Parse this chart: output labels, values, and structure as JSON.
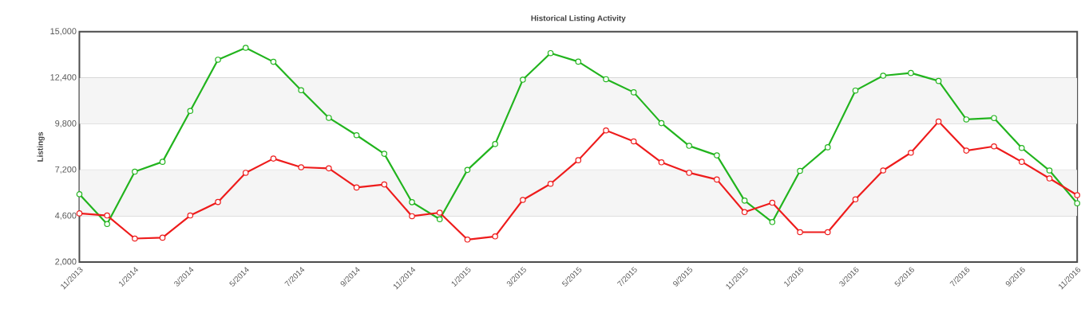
{
  "chart_data": {
    "type": "line",
    "title": "Historical Listing Activity",
    "ylabel": "Listings",
    "x": [
      "2013-11",
      "2013-12",
      "2014-01",
      "2014-02",
      "2014-03",
      "2014-04",
      "2014-05",
      "2014-06",
      "2014-07",
      "2014-08",
      "2014-09",
      "2014-10",
      "2014-11",
      "2014-12",
      "2015-01",
      "2015-02",
      "2015-03",
      "2015-04",
      "2015-05",
      "2015-06",
      "2015-07",
      "2015-08",
      "2015-09",
      "2015-10",
      "2015-11",
      "2015-12",
      "2016-01",
      "2016-02",
      "2016-03",
      "2016-04",
      "2016-05",
      "2016-06",
      "2016-07",
      "2016-08",
      "2016-09",
      "2016-10",
      "2016-11"
    ],
    "series": [
      {
        "color": "#22b41e",
        "values": [
          5830,
          4150,
          7100,
          7660,
          10530,
          13420,
          14090,
          13300,
          11700,
          10140,
          9160,
          8110,
          5380,
          4420,
          7200,
          8660,
          12290,
          13790,
          13310,
          12320,
          11580,
          9840,
          8560,
          8020,
          5470,
          4260,
          7150,
          8480,
          11680,
          12520,
          12670,
          12220,
          10050,
          10130,
          8440,
          7170,
          5320
        ]
      },
      {
        "color": "#ee1c1c",
        "values": [
          4750,
          4630,
          3330,
          3380,
          4630,
          5390,
          7040,
          7840,
          7350,
          7290,
          6210,
          6380,
          4590,
          4790,
          3270,
          3450,
          5510,
          6420,
          7750,
          9430,
          8810,
          7630,
          7040,
          6660,
          4820,
          5350,
          3690,
          3690,
          5540,
          7170,
          8170,
          9930,
          8290,
          8530,
          7660,
          6720,
          5780
        ]
      }
    ],
    "xlim": [
      "2013-11",
      "2016-11"
    ],
    "xticks": [
      {
        "value": "2013-11",
        "label": "11/2013"
      },
      {
        "value": "2014-01",
        "label": "1/2014"
      },
      {
        "value": "2014-03",
        "label": "3/2014"
      },
      {
        "value": "2014-05",
        "label": "5/2014"
      },
      {
        "value": "2014-07",
        "label": "7/2014"
      },
      {
        "value": "2014-09",
        "label": "9/2014"
      },
      {
        "value": "2014-11",
        "label": "11/2014"
      },
      {
        "value": "2015-01",
        "label": "1/2015"
      },
      {
        "value": "2015-03",
        "label": "3/2015"
      },
      {
        "value": "2015-05",
        "label": "5/2015"
      },
      {
        "value": "2015-07",
        "label": "7/2015"
      },
      {
        "value": "2015-09",
        "label": "9/2015"
      },
      {
        "value": "2015-11",
        "label": "11/2015"
      },
      {
        "value": "2016-01",
        "label": "1/2016"
      },
      {
        "value": "2016-03",
        "label": "3/2016"
      },
      {
        "value": "2016-05",
        "label": "5/2016"
      },
      {
        "value": "2016-07",
        "label": "7/2016"
      },
      {
        "value": "2016-09",
        "label": "9/2016"
      },
      {
        "value": "2016-11",
        "label": "11/2016"
      }
    ],
    "ylim": [
      2000,
      15000
    ],
    "yticks": [
      {
        "value": 2000,
        "label": "2,000"
      },
      {
        "value": 4600,
        "label": "4,600"
      },
      {
        "value": 7200,
        "label": "7,200"
      },
      {
        "value": 9800,
        "label": "9,800"
      },
      {
        "value": 12400,
        "label": "12,400"
      },
      {
        "value": 15000,
        "label": "15,000"
      }
    ],
    "grid": "y",
    "marker": "circle",
    "line_style": "solid"
  }
}
